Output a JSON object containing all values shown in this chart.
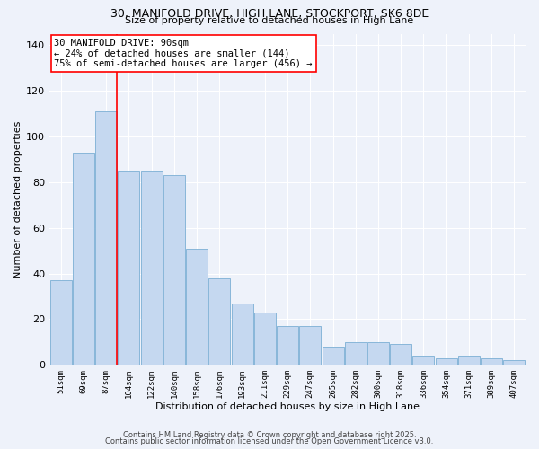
{
  "title_line1": "30, MANIFOLD DRIVE, HIGH LANE, STOCKPORT, SK6 8DE",
  "title_line2": "Size of property relative to detached houses in High Lane",
  "xlabel": "Distribution of detached houses by size in High Lane",
  "ylabel": "Number of detached properties",
  "categories": [
    "51sqm",
    "69sqm",
    "87sqm",
    "104sqm",
    "122sqm",
    "140sqm",
    "158sqm",
    "176sqm",
    "193sqm",
    "211sqm",
    "229sqm",
    "247sqm",
    "265sqm",
    "282sqm",
    "300sqm",
    "318sqm",
    "336sqm",
    "354sqm",
    "371sqm",
    "389sqm",
    "407sqm"
  ],
  "bar_heights": [
    37,
    93,
    111,
    85,
    85,
    83,
    51,
    38,
    27,
    23,
    17,
    17,
    8,
    10,
    10,
    9,
    4,
    3,
    4,
    3,
    2
  ],
  "bar_color": "#c5d8f0",
  "bar_edge_color": "#7bafd4",
  "property_bar_index": 2,
  "annotation_text_line1": "30 MANIFOLD DRIVE: 90sqm",
  "annotation_text_line2": "← 24% of detached houses are smaller (144)",
  "annotation_text_line3": "75% of semi-detached houses are larger (456) →",
  "annotation_fontsize": 7.5,
  "background_color": "#eef2fa",
  "ylim": [
    0,
    145
  ],
  "yticks": [
    0,
    20,
    40,
    60,
    80,
    100,
    120,
    140
  ],
  "footer_line1": "Contains HM Land Registry data © Crown copyright and database right 2025.",
  "footer_line2": "Contains public sector information licensed under the Open Government Licence v3.0.",
  "footer_fontsize": 6.0,
  "title_fontsize1": 9.0,
  "title_fontsize2": 8.0
}
